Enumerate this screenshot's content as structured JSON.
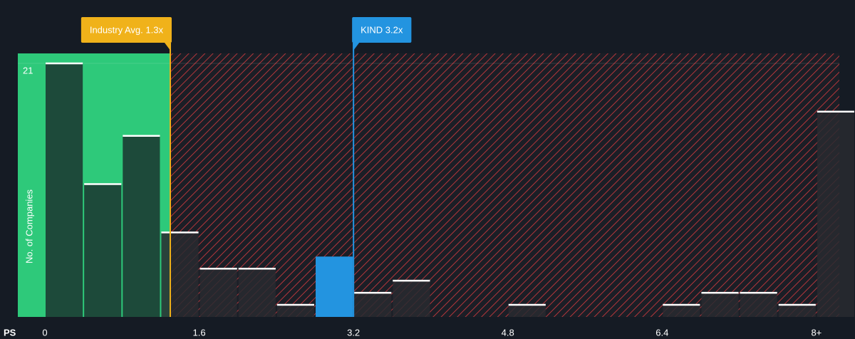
{
  "chart_data": {
    "type": "histogram",
    "bins": [
      0,
      0.4,
      0.8,
      1.2,
      1.6,
      2.0,
      2.4,
      2.8,
      3.2,
      3.6,
      4.0,
      4.4,
      4.8,
      5.2,
      5.6,
      6.0,
      6.4,
      6.8,
      7.2,
      7.6,
      8.0,
      8.4
    ],
    "values": [
      21,
      11,
      15,
      7,
      4,
      4,
      1,
      5,
      2,
      3,
      0,
      0,
      1,
      0,
      0,
      0,
      1,
      2,
      2,
      1,
      17
    ],
    "highlight_index": 7,
    "xlabel": "PS",
    "ylabel": "No. of Companies",
    "xlim": [
      0,
      8.4
    ],
    "ylim": [
      0,
      21
    ],
    "xticks": [
      0,
      1.6,
      3.2,
      4.8,
      6.4,
      {
        "value": 8,
        "label": "8+"
      }
    ],
    "yticks": [
      21
    ],
    "markers": [
      {
        "label": "Industry Avg. 1.3x",
        "value": 1.3,
        "color": "#f0b21a"
      },
      {
        "label": "KIND 3.2x",
        "value": 3.2,
        "color": "#2394e0"
      }
    ]
  }
}
